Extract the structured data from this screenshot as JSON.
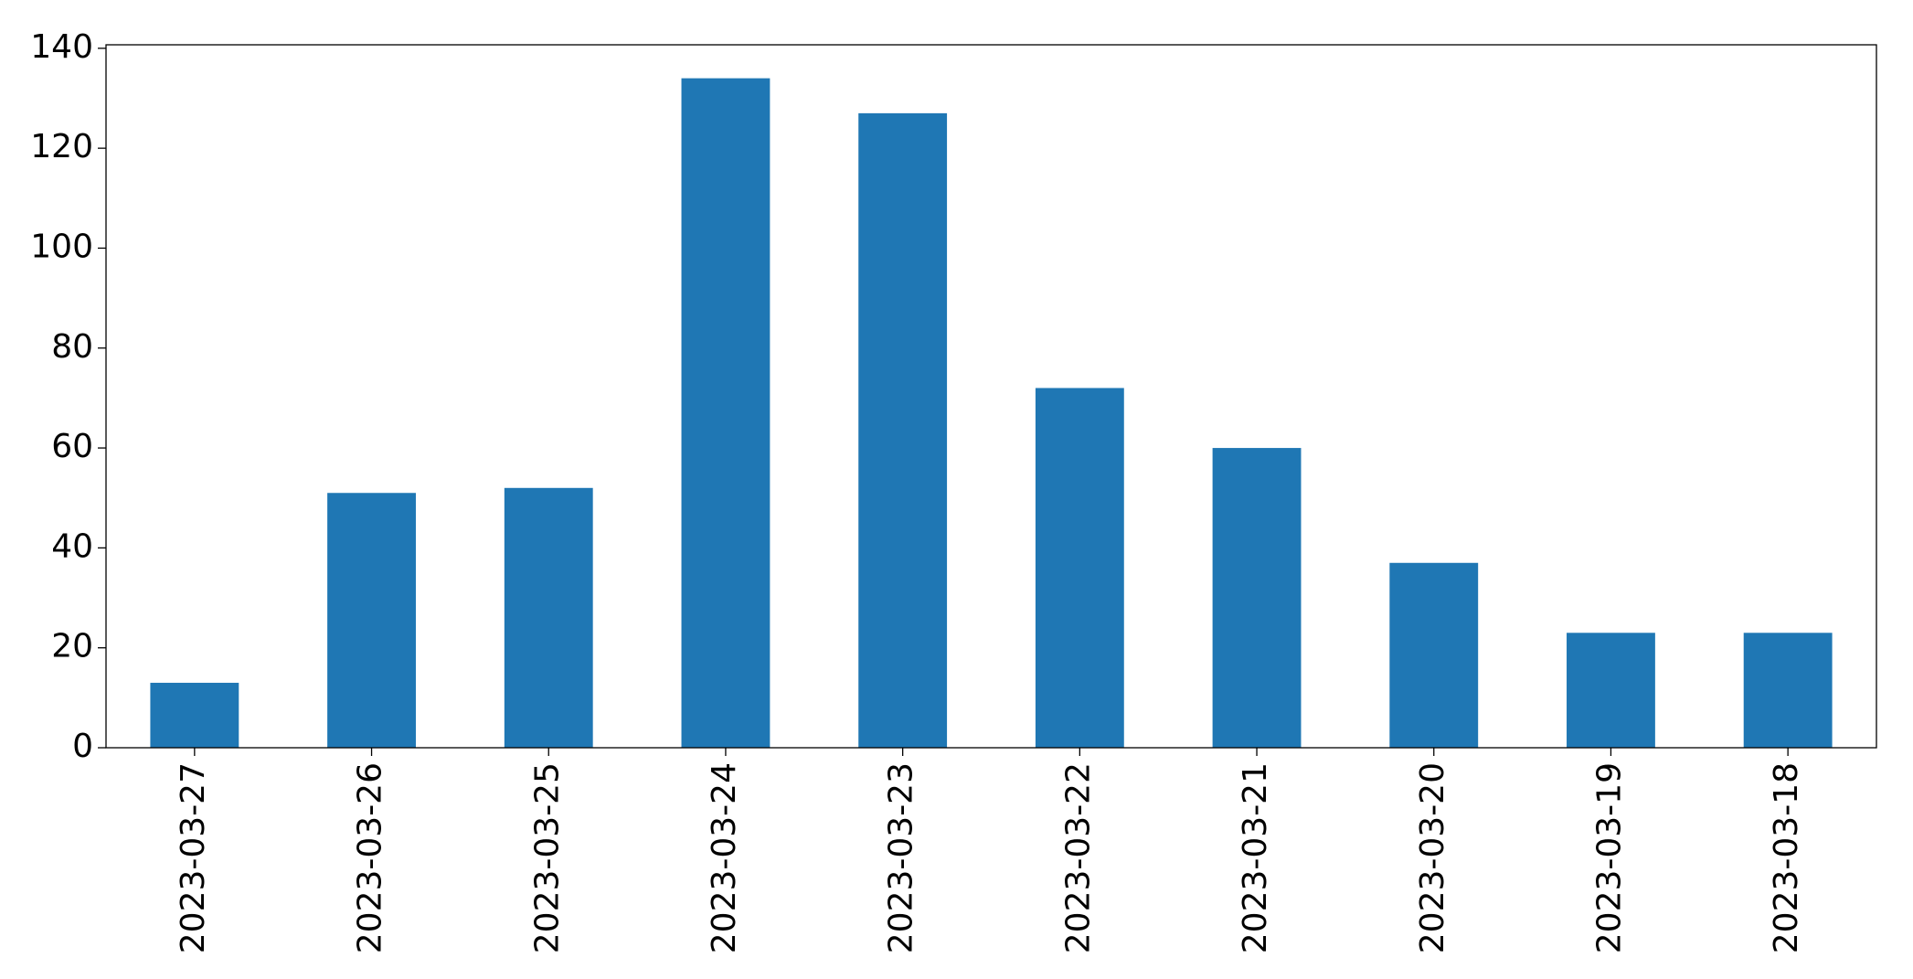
{
  "chart_data": {
    "type": "bar",
    "categories": [
      "2023-03-27",
      "2023-03-26",
      "2023-03-25",
      "2023-03-24",
      "2023-03-23",
      "2023-03-22",
      "2023-03-21",
      "2023-03-20",
      "2023-03-19",
      "2023-03-18"
    ],
    "values": [
      13,
      51,
      52,
      134,
      127,
      72,
      60,
      37,
      23,
      23
    ],
    "color": "#1f77b4",
    "ylim": [
      0,
      140.7
    ],
    "yticks": [
      0,
      20,
      40,
      60,
      80,
      100,
      120,
      140
    ],
    "grid": false
  }
}
